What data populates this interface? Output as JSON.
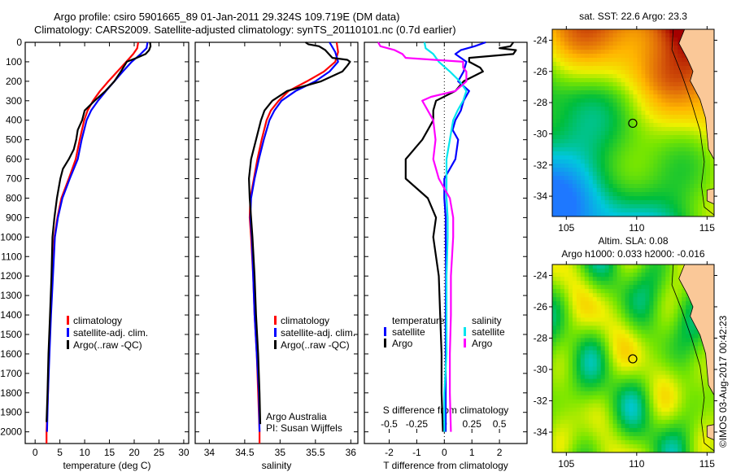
{
  "header": {
    "title_line1": "Argo profile: csiro 5901665_89 01-Jan-2011 29.324S 109.719E (DM data)",
    "title_line2": "Climatology: CARS2009. Satellite-adjusted climatology: synTS_20110101.nc (0.7d earlier)"
  },
  "colors": {
    "climatology": "#ff0000",
    "satellite": "#0000ff",
    "argo": "#000000",
    "sal_satellite": "#00e5ee",
    "sal_argo": "#ff00ff"
  },
  "chart_data": [
    {
      "type": "line",
      "id": "temperature",
      "title": "",
      "xlabel": "temperature (deg C)",
      "ylabel": "",
      "xlim": [
        -2,
        31
      ],
      "ylim": [
        2060,
        0
      ],
      "xticks": [
        0,
        5,
        10,
        15,
        20,
        25,
        30
      ],
      "yticks": [
        0,
        100,
        200,
        300,
        400,
        500,
        600,
        700,
        800,
        900,
        1000,
        1100,
        1200,
        1300,
        1400,
        1500,
        1600,
        1700,
        1800,
        1900,
        2000
      ],
      "legend": {
        "placement": "middle-center",
        "entries": [
          "climatology",
          "satellite-adj. clim.",
          "Argo(..raw -QC)"
        ]
      },
      "series": [
        {
          "name": "climatology",
          "color": "#ff0000",
          "depth": [
            0,
            30,
            60,
            100,
            150,
            200,
            250,
            300,
            350,
            400,
            500,
            600,
            700,
            800,
            900,
            1000,
            1200,
            1400,
            1600,
            1800,
            2000,
            2060
          ],
          "values": [
            20.8,
            20.6,
            19.8,
            18.4,
            16.6,
            14.8,
            13.1,
            11.7,
            10.6,
            9.9,
            9.0,
            8.2,
            6.8,
            5.3,
            4.5,
            3.9,
            3.5,
            3.1,
            2.8,
            2.6,
            2.3,
            2.3
          ]
        },
        {
          "name": "satellite-adj. clim.",
          "color": "#0000ff",
          "depth": [
            0,
            30,
            60,
            100,
            150,
            200,
            250,
            300,
            350,
            400,
            500,
            600,
            700,
            800,
            900,
            1000,
            1200,
            1400,
            1600,
            1800,
            2000
          ],
          "values": [
            22.7,
            22.5,
            21.3,
            19.5,
            17.7,
            16.0,
            14.3,
            12.7,
            11.3,
            10.4,
            9.4,
            8.6,
            7.0,
            5.5,
            4.6,
            4.0,
            3.6,
            3.2,
            2.9,
            2.6,
            2.4
          ]
        },
        {
          "name": "Argo(..raw -QC)",
          "color": "#000000",
          "depth": [
            0,
            20,
            40,
            60,
            80,
            100,
            150,
            200,
            250,
            300,
            350,
            400,
            450,
            500,
            550,
            600,
            650,
            700,
            800,
            900,
            1000,
            1200,
            1400,
            1600,
            1800,
            1950
          ],
          "values": [
            23.2,
            23.3,
            23.0,
            22.3,
            20.5,
            18.5,
            17.3,
            16.0,
            14.2,
            12.0,
            10.0,
            9.5,
            8.6,
            8.3,
            7.8,
            6.8,
            5.6,
            5.1,
            4.4,
            3.9,
            3.5,
            3.3,
            3.0,
            2.7,
            2.5,
            2.3
          ]
        }
      ]
    },
    {
      "type": "line",
      "id": "salinity",
      "title": "",
      "xlabel": "salinity",
      "ylabel": "",
      "xlim": [
        33.8,
        36.1
      ],
      "ylim": [
        2060,
        0
      ],
      "xticks": [
        34,
        34.5,
        35,
        35.5,
        36
      ],
      "legend": {
        "placement": "middle-center",
        "entries": [
          "climatology",
          "satellite-adj. clim.",
          "Argo(..raw -QC)"
        ]
      },
      "annotation": [
        "Argo Australia",
        "PI: Susan Wijffels"
      ],
      "series": [
        {
          "name": "climatology",
          "color": "#ff0000",
          "depth": [
            0,
            50,
            100,
            150,
            200,
            250,
            300,
            350,
            400,
            500,
            600,
            700,
            800,
            900,
            1000,
            1200,
            1400,
            1600,
            1800,
            2000,
            2060
          ],
          "values": [
            35.8,
            35.82,
            35.78,
            35.62,
            35.38,
            35.12,
            34.98,
            34.87,
            34.81,
            34.74,
            34.68,
            34.63,
            34.58,
            34.57,
            34.59,
            34.62,
            34.64,
            34.67,
            34.69,
            34.71,
            34.71
          ]
        },
        {
          "name": "satellite-adj. clim.",
          "color": "#0000ff",
          "depth": [
            0,
            50,
            100,
            150,
            200,
            250,
            300,
            350,
            400,
            500,
            600,
            700,
            800,
            900,
            1000,
            1200,
            1400,
            1600,
            1800,
            2000
          ],
          "values": [
            35.7,
            35.78,
            35.82,
            35.7,
            35.5,
            35.22,
            35.02,
            34.92,
            34.85,
            34.77,
            34.7,
            34.64,
            34.59,
            34.58,
            34.6,
            34.62,
            34.64,
            34.67,
            34.7,
            34.71
          ]
        },
        {
          "name": "Argo(..raw -QC)",
          "color": "#000000",
          "depth": [
            0,
            10,
            20,
            40,
            60,
            80,
            90,
            100,
            120,
            150,
            200,
            250,
            300,
            350,
            400,
            500,
            600,
            700,
            800,
            900,
            1000,
            1200,
            1400,
            1600,
            1800,
            1960
          ],
          "values": [
            35.36,
            35.4,
            35.55,
            35.64,
            35.69,
            35.74,
            35.95,
            35.99,
            35.95,
            35.88,
            35.58,
            35.1,
            34.89,
            34.78,
            34.73,
            34.66,
            34.59,
            34.56,
            34.57,
            34.59,
            34.61,
            34.64,
            34.66,
            34.69,
            34.71,
            34.72
          ]
        }
      ]
    },
    {
      "type": "line",
      "id": "difference",
      "title": "",
      "xlabel": "T difference from climatology",
      "x2label": "S difference from climatology",
      "xlim": [
        -2.9,
        3.0
      ],
      "x2lim": [
        -0.725,
        0.75
      ],
      "ylim": [
        2060,
        0
      ],
      "xticks": [
        -2,
        -1,
        0,
        1,
        2
      ],
      "x2ticks": [
        -0.5,
        -0.25,
        0,
        0.25,
        0.5
      ],
      "x2ticklabels": [
        "-0.5",
        "-0.25",
        "0",
        "0.25",
        "0.5"
      ],
      "zero_line": true,
      "legend": {
        "placement": "middle-center",
        "groups": [
          {
            "heading": "temperature",
            "entries": [
              "satellite",
              "Argo"
            ]
          },
          {
            "heading": "salinity",
            "entries": [
              "satellite",
              "Argo"
            ]
          }
        ]
      },
      "series": [
        {
          "name": "temperature satellite",
          "color": "#0000ff",
          "depth": [
            0,
            20,
            40,
            60,
            80,
            100,
            150,
            200,
            250,
            300,
            350,
            400,
            450,
            500,
            600,
            700,
            800,
            900,
            1000,
            1200,
            1400,
            1600,
            1800,
            2000
          ],
          "values": [
            1.5,
            1.1,
            0.6,
            0.4,
            0.6,
            0.8,
            0.7,
            0.5,
            0.9,
            0.7,
            0.6,
            0.4,
            0.3,
            0.5,
            0.4,
            0.0,
            0.0,
            0.05,
            0.05,
            0.06,
            0.05,
            0.05,
            0.05,
            0.05
          ]
        },
        {
          "name": "temperature Argo",
          "color": "#000000",
          "depth": [
            0,
            20,
            30,
            40,
            60,
            80,
            100,
            130,
            150,
            200,
            250,
            300,
            350,
            400,
            450,
            500,
            600,
            650,
            700,
            750,
            800,
            900,
            1000,
            1100,
            1200,
            1400,
            1600,
            1800,
            2000
          ],
          "values": [
            2.5,
            2.4,
            2.0,
            2.6,
            2.5,
            0.9,
            0.9,
            1.3,
            1.4,
            0.7,
            0.4,
            -0.3,
            -0.4,
            -0.4,
            -0.6,
            -0.8,
            -1.4,
            -1.4,
            -1.4,
            -1.0,
            -0.6,
            -0.3,
            -0.4,
            -0.3,
            -0.2,
            -0.15,
            -0.1,
            -0.1,
            -0.05
          ]
        },
        {
          "name": "salinity satellite",
          "color": "#00e5ee",
          "depth": [
            0,
            30,
            60,
            100,
            150,
            200,
            250,
            300,
            350,
            400,
            500,
            600,
            700,
            800,
            900,
            1000,
            1200,
            1400,
            1600,
            1800,
            2000
          ],
          "values": [
            -0.18,
            -0.17,
            -0.1,
            -0.05,
            0.05,
            0.14,
            0.2,
            0.17,
            0.12,
            0.08,
            0.05,
            0.02,
            0.02,
            0.02,
            0.03,
            0.03,
            0.02,
            0.02,
            0.02,
            0.0,
            0.0
          ]
        },
        {
          "name": "salinity Argo",
          "color": "#ff00ff",
          "depth": [
            0,
            20,
            40,
            60,
            80,
            100,
            130,
            150,
            200,
            250,
            280,
            300,
            400,
            500,
            600,
            700,
            800,
            900,
            1000,
            1200,
            1400,
            1600,
            1800,
            2000
          ],
          "values": [
            -0.6,
            -0.58,
            -0.45,
            -0.38,
            -0.35,
            0.17,
            0.17,
            0.2,
            0.2,
            0.1,
            -0.12,
            -0.2,
            -0.1,
            -0.08,
            -0.1,
            -0.05,
            0.05,
            0.08,
            0.08,
            0.06,
            0.06,
            0.05,
            0.05,
            0.06
          ]
        }
      ]
    },
    {
      "type": "heatmap",
      "id": "sst-map",
      "title": "sat. SST: 22.6 Argo: 23.3",
      "xlim": [
        104,
        115.5
      ],
      "ylim": [
        -35.3,
        -23.3
      ],
      "xticks": [
        105,
        110,
        115
      ],
      "yticks": [
        -24,
        -26,
        -28,
        -30,
        -32,
        -34
      ],
      "float_position": {
        "lon": 109.719,
        "lat": -29.324
      },
      "description": "Sea surface temperature field; warm (red/orange) near coast to north-east, cooler (green/blue) toward south-west; land in tan."
    },
    {
      "type": "heatmap",
      "id": "sla-map",
      "title": "Altim. SLA: 0.08",
      "subtitle": "Argo h1000: 0.033 h2000: -0.016",
      "xlim": [
        104,
        115.5
      ],
      "ylim": [
        -35.3,
        -23.3
      ],
      "xticks": [
        105,
        110,
        115
      ],
      "yticks": [
        -24,
        -26,
        -28,
        -30,
        -32,
        -34
      ],
      "float_position": {
        "lon": 109.719,
        "lat": -29.324
      },
      "description": "Sea level anomaly field with eddies; land in tan."
    }
  ],
  "footer": {
    "credit": "©IMOS 03-Aug-2017 00:42:23"
  }
}
